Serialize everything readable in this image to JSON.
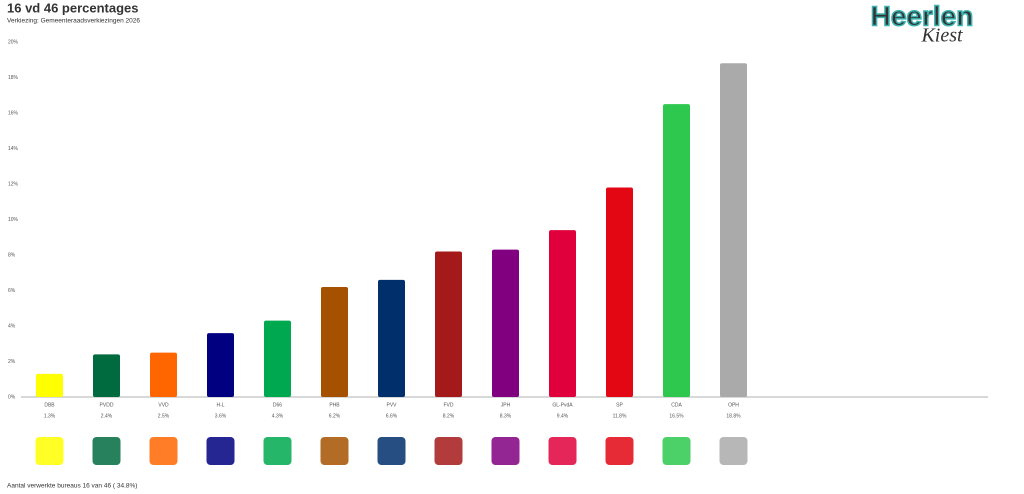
{
  "chart_data": {
    "type": "bar",
    "title": "16 vd 46 percentages",
    "subtitle": "Verkiezing: Gemeenteraadsverkiezingen 2026",
    "categories": [
      "DBB",
      "PVDD",
      "VVD",
      "H-L",
      "D66",
      "PHB",
      "PVV",
      "FVD",
      "JPH",
      "GL-PvdA",
      "SP",
      "CDA",
      "OPH"
    ],
    "values": [
      1.3,
      2.4,
      2.5,
      3.6,
      4.3,
      6.2,
      6.6,
      8.2,
      8.3,
      9.4,
      11.8,
      16.5,
      18.8
    ],
    "value_labels": [
      "1.3%",
      "2.4%",
      "2.5%",
      "3.6%",
      "4.3%",
      "6.2%",
      "6.6%",
      "8.2%",
      "8.3%",
      "9.4%",
      "11.8%",
      "16.5%",
      "18.8%"
    ],
    "colors": [
      "#ffff00",
      "#006b3f",
      "#ff6600",
      "#000080",
      "#00a94f",
      "#a55200",
      "#002f6c",
      "#a41a1a",
      "#800080",
      "#e0003c",
      "#e30613",
      "#2dc84d",
      "#aaaaaa"
    ],
    "ylim": [
      0,
      20
    ],
    "yticks": [
      {
        "value": 0,
        "label": "0%"
      },
      {
        "value": 2,
        "label": "2%"
      },
      {
        "value": 4,
        "label": "4%"
      },
      {
        "value": 6,
        "label": "6%"
      },
      {
        "value": 8,
        "label": "8%"
      },
      {
        "value": 10,
        "label": "10%"
      },
      {
        "value": 12,
        "label": "12%"
      },
      {
        "value": 14,
        "label": "14%"
      },
      {
        "value": 16,
        "label": "16%"
      },
      {
        "value": 18,
        "label": "18%"
      },
      {
        "value": 20,
        "label": "20%"
      }
    ]
  },
  "footer": "Aantal verwerkte bureaus 16 van 46 ( 34.8%)",
  "logo": {
    "name": "Heerlen",
    "tagline": "Kiest"
  }
}
